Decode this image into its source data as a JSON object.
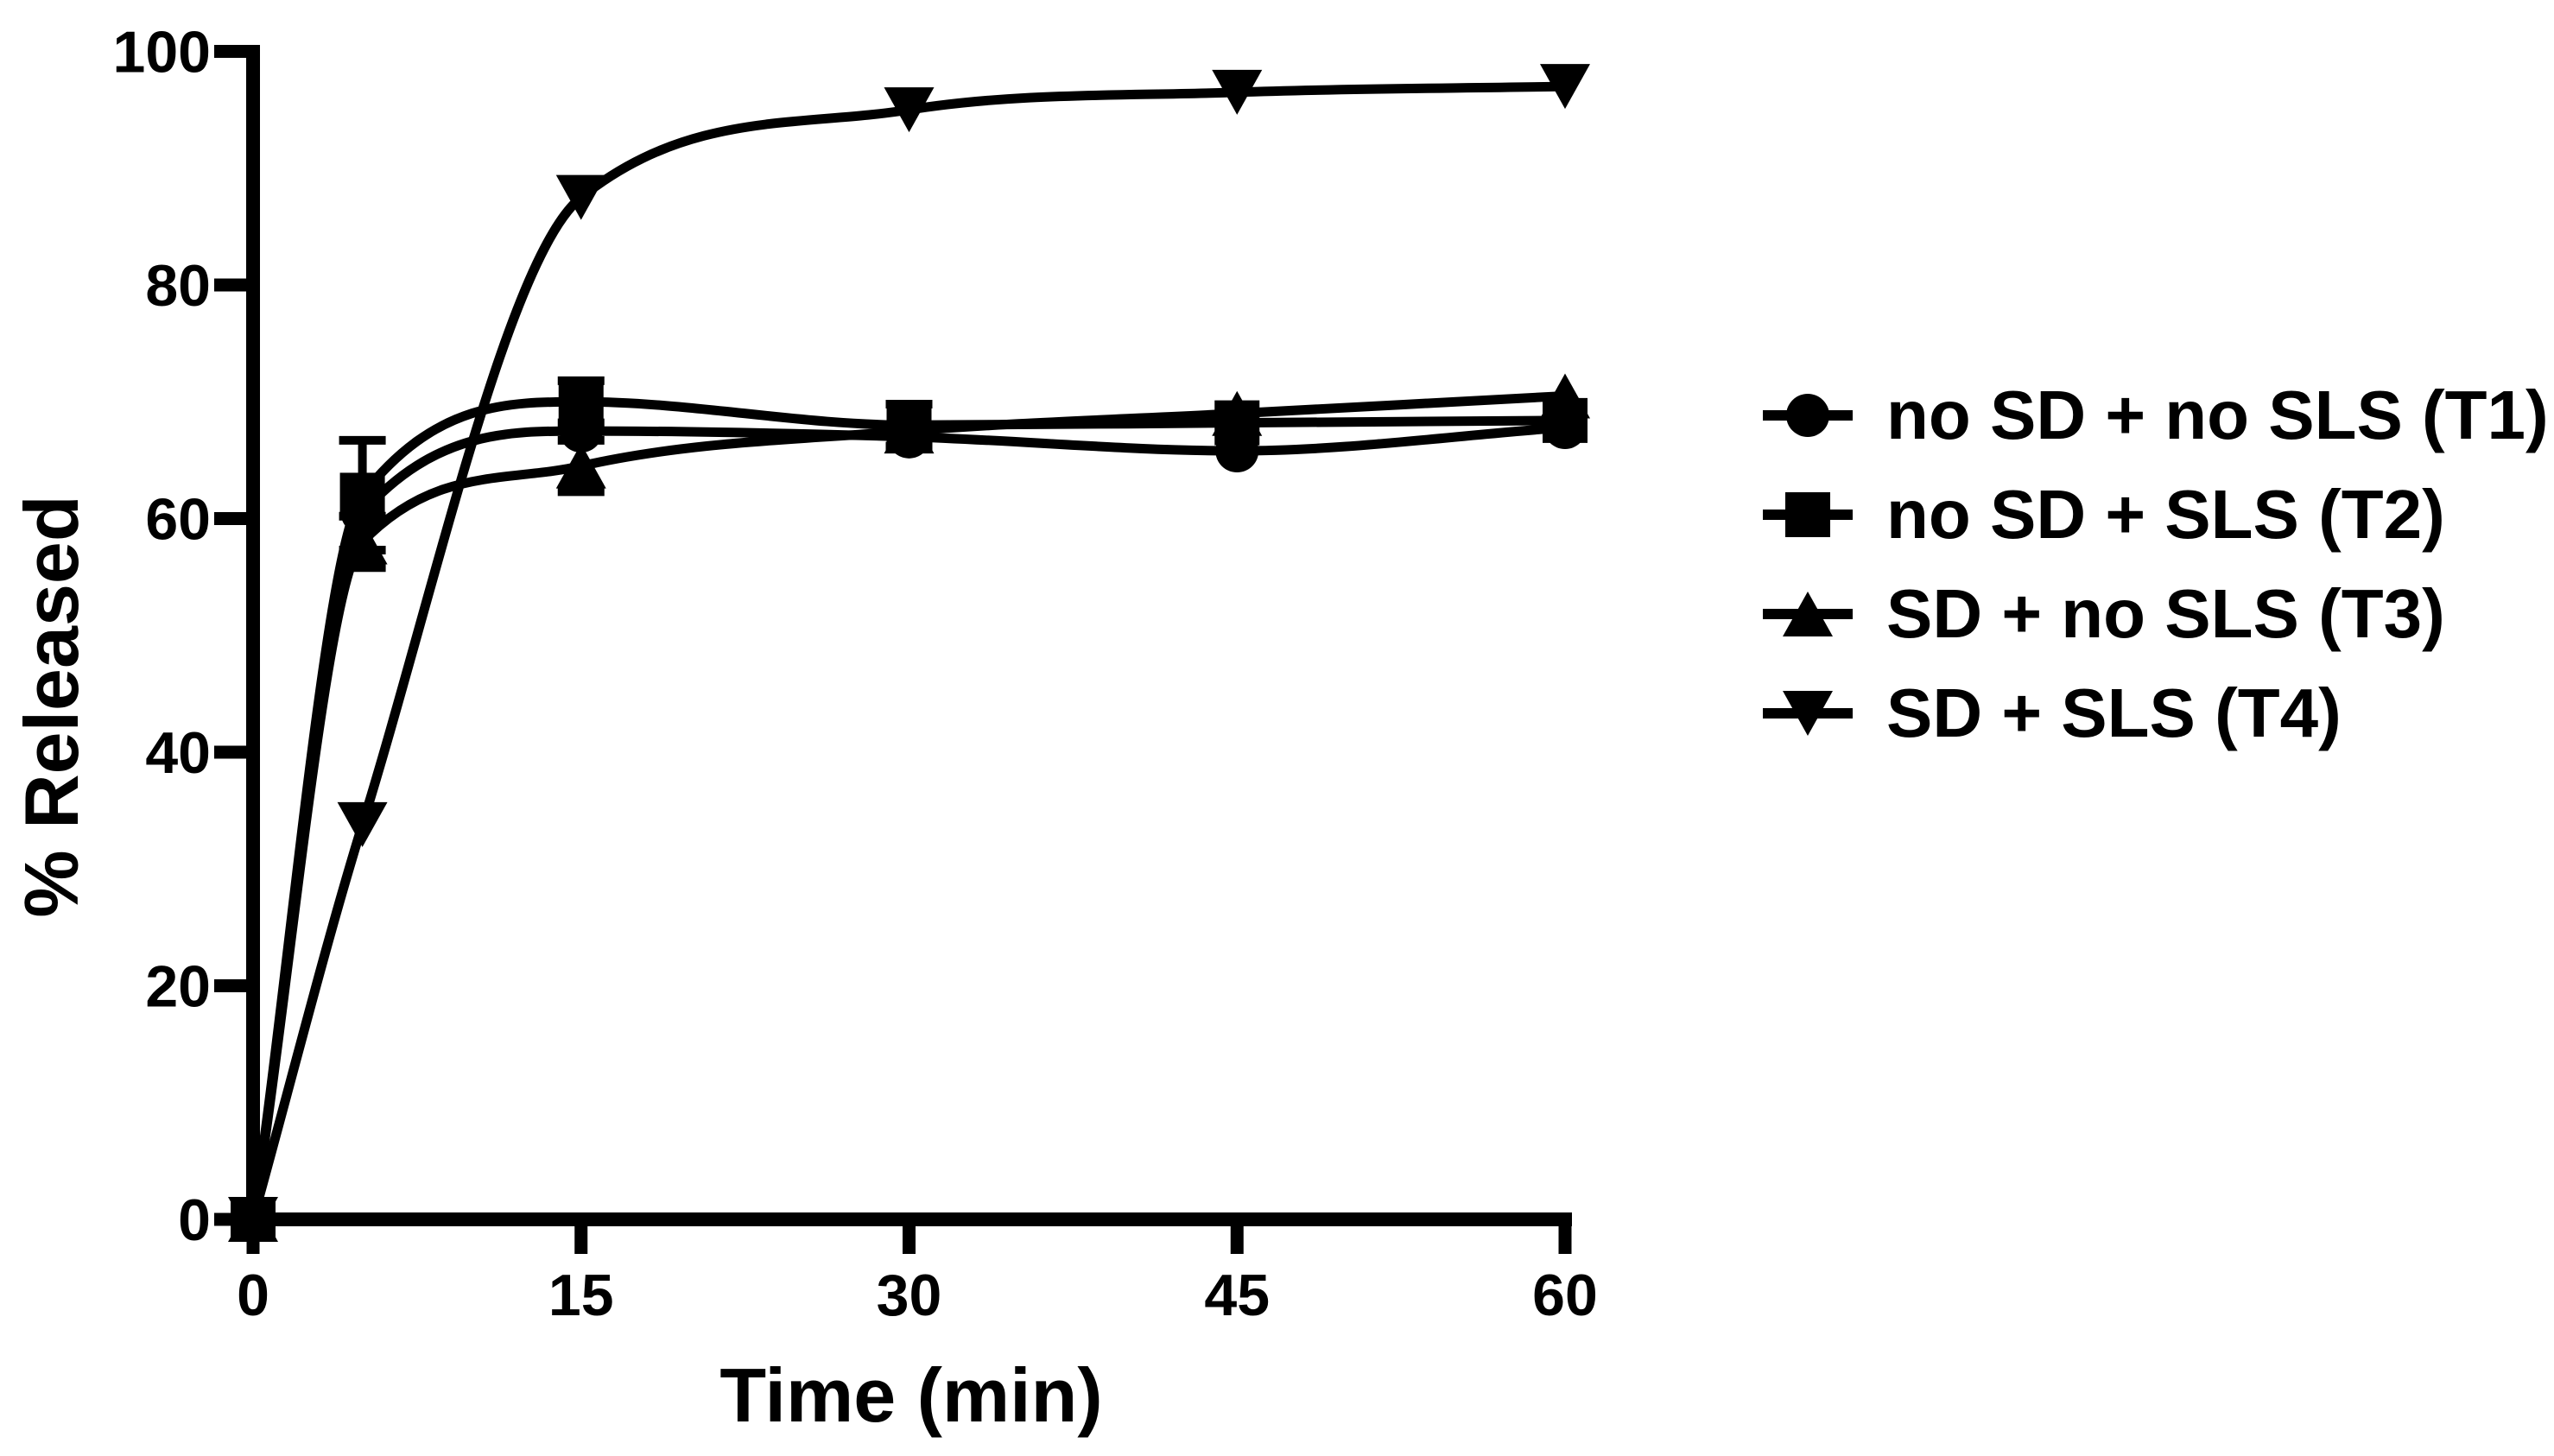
{
  "figure": {
    "background": "#ffffff",
    "ink": "#000000"
  },
  "chart_data": {
    "type": "line",
    "title": "",
    "xlabel": "Time (min)",
    "ylabel": "% Released",
    "xlim": [
      0,
      60
    ],
    "ylim": [
      0,
      100
    ],
    "x_ticks": [
      0,
      15,
      30,
      45,
      60
    ],
    "y_ticks": [
      0,
      20,
      40,
      60,
      80,
      100
    ],
    "grid": false,
    "legend_position": "right",
    "x": [
      0,
      5,
      15,
      30,
      45,
      60
    ],
    "series": [
      {
        "name": "no SD + no SLS (T1)",
        "marker": "circle",
        "values": [
          0,
          60.5,
          67.5,
          67,
          65.8,
          67.8
        ],
        "errors": [
          0,
          0,
          0,
          0,
          0,
          0
        ]
      },
      {
        "name": "no SD + SLS (T2)",
        "marker": "square",
        "values": [
          0,
          62,
          70,
          68,
          68.2,
          68.4
        ],
        "errors": [
          0,
          4.7,
          1.8,
          1.8,
          0,
          0
        ]
      },
      {
        "name": "SD + no SLS (T3)",
        "marker": "triangle-up",
        "values": [
          0,
          58,
          64.5,
          67.5,
          69,
          70.5
        ],
        "errors": [
          0,
          2.2,
          2.2,
          0,
          0,
          0
        ]
      },
      {
        "name": "SD + SLS (T4)",
        "marker": "triangle-down",
        "values": [
          0,
          33.8,
          87.5,
          95,
          96.5,
          97
        ],
        "errors": [
          0,
          0,
          0,
          0,
          0,
          0
        ]
      }
    ]
  }
}
